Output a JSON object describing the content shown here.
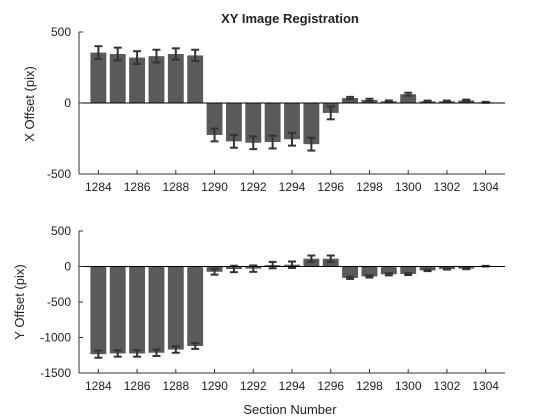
{
  "colors": {
    "bar": "#5a5a5a",
    "error": "#333333",
    "axis": "#333333",
    "background": "#ffffff"
  },
  "chart_data": [
    {
      "type": "bar",
      "title": "XY Image Registration",
      "xlabel": "",
      "ylabel": "X Offset (pix)",
      "ylim": [
        -500,
        500
      ],
      "xlim": [
        1283,
        1305
      ],
      "yticks": [
        -500,
        0,
        500
      ],
      "xticks": [
        1284,
        1286,
        1288,
        1290,
        1292,
        1294,
        1296,
        1298,
        1300,
        1302,
        1304
      ],
      "grid": false,
      "x": [
        1284,
        1285,
        1286,
        1287,
        1288,
        1289,
        1290,
        1291,
        1292,
        1293,
        1294,
        1295,
        1296,
        1297,
        1298,
        1299,
        1300,
        1301,
        1302,
        1303,
        1304
      ],
      "values": [
        355,
        345,
        320,
        330,
        345,
        335,
        -225,
        -270,
        -280,
        -275,
        -255,
        -290,
        -70,
        35,
        22,
        12,
        62,
        12,
        12,
        18,
        5
      ],
      "errors": [
        45,
        45,
        45,
        45,
        40,
        40,
        45,
        45,
        45,
        45,
        45,
        45,
        45,
        8,
        8,
        6,
        10,
        5,
        5,
        6,
        3
      ]
    },
    {
      "type": "bar",
      "title": "",
      "xlabel": "Section Number",
      "ylabel": "Y Offset (pix)",
      "ylim": [
        -1500,
        500
      ],
      "xlim": [
        1283,
        1305
      ],
      "yticks": [
        -1500,
        -1000,
        -500,
        0,
        500
      ],
      "xticks": [
        1284,
        1286,
        1288,
        1290,
        1292,
        1294,
        1296,
        1298,
        1300,
        1302,
        1304
      ],
      "grid": false,
      "x": [
        1284,
        1285,
        1286,
        1287,
        1288,
        1289,
        1290,
        1291,
        1292,
        1293,
        1294,
        1295,
        1296,
        1297,
        1298,
        1299,
        1300,
        1301,
        1302,
        1303,
        1304
      ],
      "values": [
        -1235,
        -1225,
        -1225,
        -1215,
        -1170,
        -1120,
        -75,
        -35,
        -30,
        20,
        25,
        110,
        110,
        -160,
        -140,
        -110,
        -105,
        -55,
        -35,
        -30,
        5
      ],
      "errors": [
        50,
        45,
        45,
        45,
        45,
        40,
        40,
        45,
        45,
        45,
        45,
        45,
        45,
        15,
        15,
        15,
        15,
        10,
        8,
        8,
        4
      ]
    }
  ]
}
